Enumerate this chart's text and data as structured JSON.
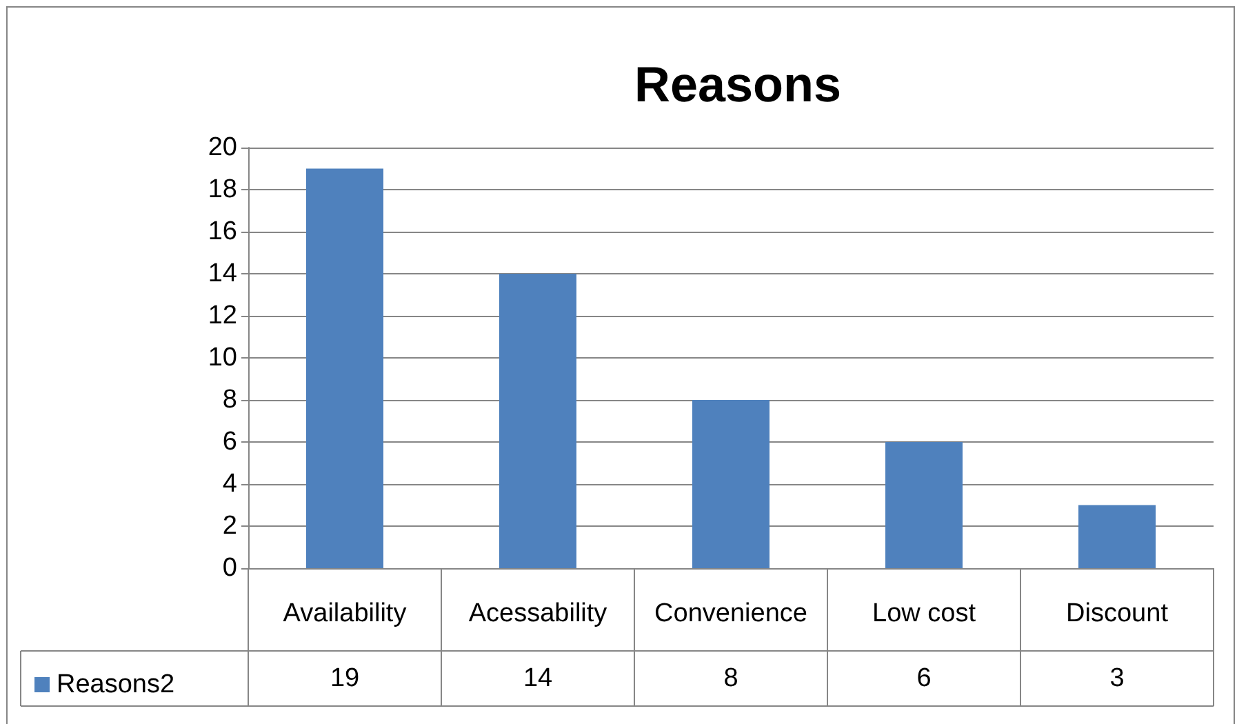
{
  "chart_data": {
    "type": "bar",
    "title": "Reasons",
    "categories": [
      "Availability",
      "Acessability",
      "Convenience",
      "Low cost",
      "Discount"
    ],
    "series": [
      {
        "name": "Reasons2",
        "color": "#4f81bd",
        "values": [
          19,
          14,
          8,
          6,
          3
        ]
      }
    ],
    "ylim": [
      0,
      20
    ],
    "yticks": [
      0,
      2,
      4,
      6,
      8,
      10,
      12,
      14,
      16,
      18,
      20
    ],
    "grid": "y",
    "legend": "bottom left",
    "data_labels": true
  }
}
